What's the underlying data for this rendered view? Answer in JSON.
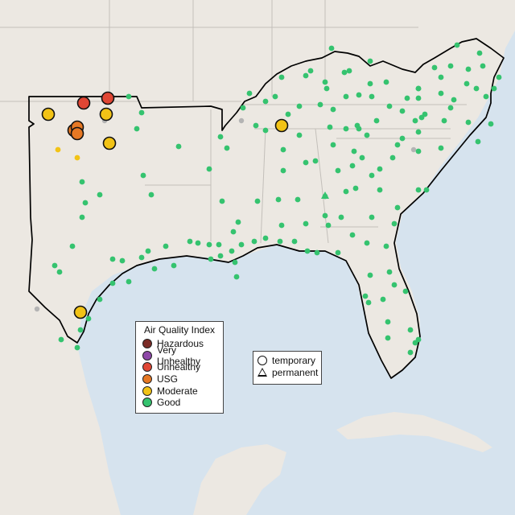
{
  "legend": {
    "title": "Air Quality Index",
    "items": [
      {
        "label": "Hazardous",
        "color": "#7b2b26",
        "icon": "hazardous-swatch-icon"
      },
      {
        "label": "Very Unhealthy",
        "color": "#8e48a8",
        "icon": "very-unhealthy-swatch-icon"
      },
      {
        "label": "Unhealthy",
        "color": "#e04634",
        "icon": "unhealthy-swatch-icon"
      },
      {
        "label": "USG",
        "color": "#e67824",
        "icon": "usg-swatch-icon"
      },
      {
        "label": "Moderate",
        "color": "#f2c316",
        "icon": "moderate-swatch-icon"
      },
      {
        "label": "Good",
        "color": "#35c36f",
        "icon": "good-swatch-icon"
      }
    ]
  },
  "monitor_types": [
    {
      "label": "temporary",
      "icon": "circle-shape-icon"
    },
    {
      "label": "permanent",
      "icon": "triangle-shape-icon"
    }
  ],
  "colors": {
    "water": "#d6e3ee",
    "land": "#e8e4dd",
    "outside_land": "#ece8e2",
    "state_border": "#c3bfba",
    "region_outline": "#000000",
    "good": "#35c36f",
    "moderate": "#f2c316",
    "usg": "#e67824",
    "unhealthy": "#e04634",
    "inactive": "#b4b4b4"
  }
}
